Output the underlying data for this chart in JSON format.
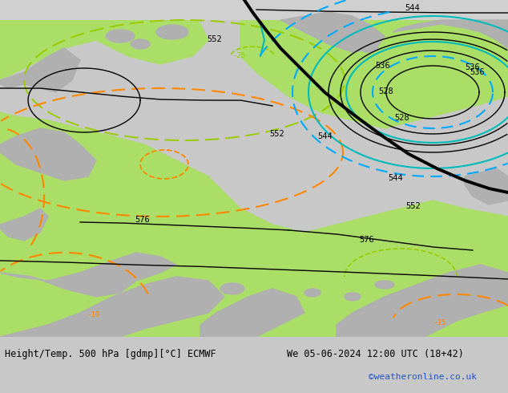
{
  "title_left": "Height/Temp. 500 hPa [gdmp][°C] ECMWF",
  "title_right": "We 05-06-2024 12:00 UTC (18+42)",
  "credit": "©weatheronline.co.uk",
  "bg_color": "#c8c8c8",
  "map_green": "#aade66",
  "map_gray": "#b0b0b0",
  "map_light_gray": "#c8c8c8",
  "black": "#000000",
  "cyan": "#00bbbb",
  "blue_dash": "#00aaff",
  "green_dash": "#99cc00",
  "orange_dash": "#ff8800",
  "credit_color": "#2255cc",
  "label_fs": 7.5,
  "title_fs": 8.5,
  "fig_w": 6.34,
  "fig_h": 4.9,
  "dpi": 100
}
